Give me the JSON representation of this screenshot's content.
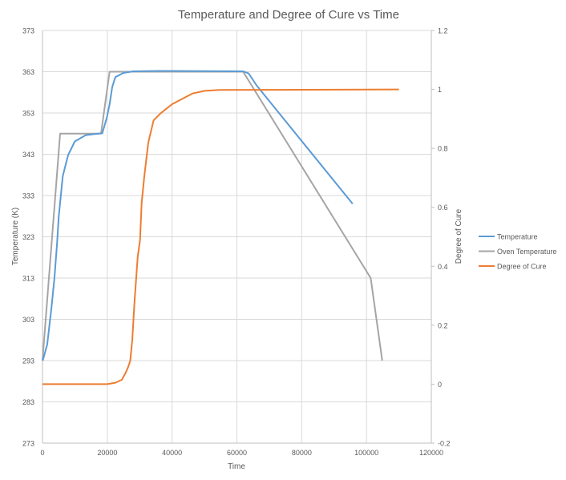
{
  "chart_data": {
    "type": "line",
    "title": "Temperature and Degree of Cure vs Time",
    "xlabel": "Time",
    "ylabel": "Temperature (K)",
    "y2label": "Degree of Cure",
    "xlim": [
      0,
      120000
    ],
    "ylim": [
      273,
      373
    ],
    "y2lim": [
      -0.2,
      1.2
    ],
    "xticks": [
      "0",
      "20000",
      "40000",
      "60000",
      "80000",
      "100000",
      "120000"
    ],
    "yticks": [
      "273",
      "283",
      "293",
      "303",
      "313",
      "323",
      "333",
      "343",
      "353",
      "363",
      "373"
    ],
    "y2ticks": [
      "-0.2",
      "0",
      "0.2",
      "0.4",
      "0.6",
      "0.8",
      "1",
      "1.2"
    ],
    "grid": true,
    "legend_position": "right",
    "series": [
      {
        "name": "Temperature",
        "axis": "left",
        "color": "#5B9BD5",
        "x": [
          0,
          150,
          1460,
          2800,
          3680,
          4560,
          5030,
          6270,
          7920,
          9980,
          13280,
          16160,
          18470,
          19870,
          20700,
          21520,
          22500,
          25000,
          28000,
          36000,
          61930,
          63600,
          66050,
          95700
        ],
        "y": [
          293,
          293.2,
          296.9,
          306,
          313,
          322,
          328,
          337.7,
          342.8,
          346.1,
          347.6,
          347.9,
          348.1,
          351.9,
          355.1,
          359.3,
          361.7,
          362.7,
          363.1,
          363.2,
          363.1,
          362.6,
          359.7,
          331
        ]
      },
      {
        "name": "Oven Temperature",
        "axis": "left",
        "color": "#A5A5A5",
        "x": [
          0,
          5440,
          18060,
          20700,
          61930,
          101300,
          104850
        ],
        "y": [
          293,
          348,
          348,
          363,
          363,
          313,
          293
        ]
      },
      {
        "name": "Degree of Cure",
        "axis": "right",
        "color": "#ED7D31",
        "x": [
          0,
          20000,
          22500,
          24500,
          25740,
          26500,
          27090,
          27700,
          28400,
          29370,
          30100,
          30600,
          31420,
          32660,
          34300,
          36370,
          40000,
          46260,
          50000,
          54430,
          110000
        ],
        "y": [
          0,
          0,
          0.005,
          0.015,
          0.04,
          0.06,
          0.08,
          0.15,
          0.28,
          0.43,
          0.49,
          0.615,
          0.705,
          0.82,
          0.895,
          0.918,
          0.95,
          0.986,
          0.995,
          0.998,
          1.0
        ]
      }
    ]
  }
}
